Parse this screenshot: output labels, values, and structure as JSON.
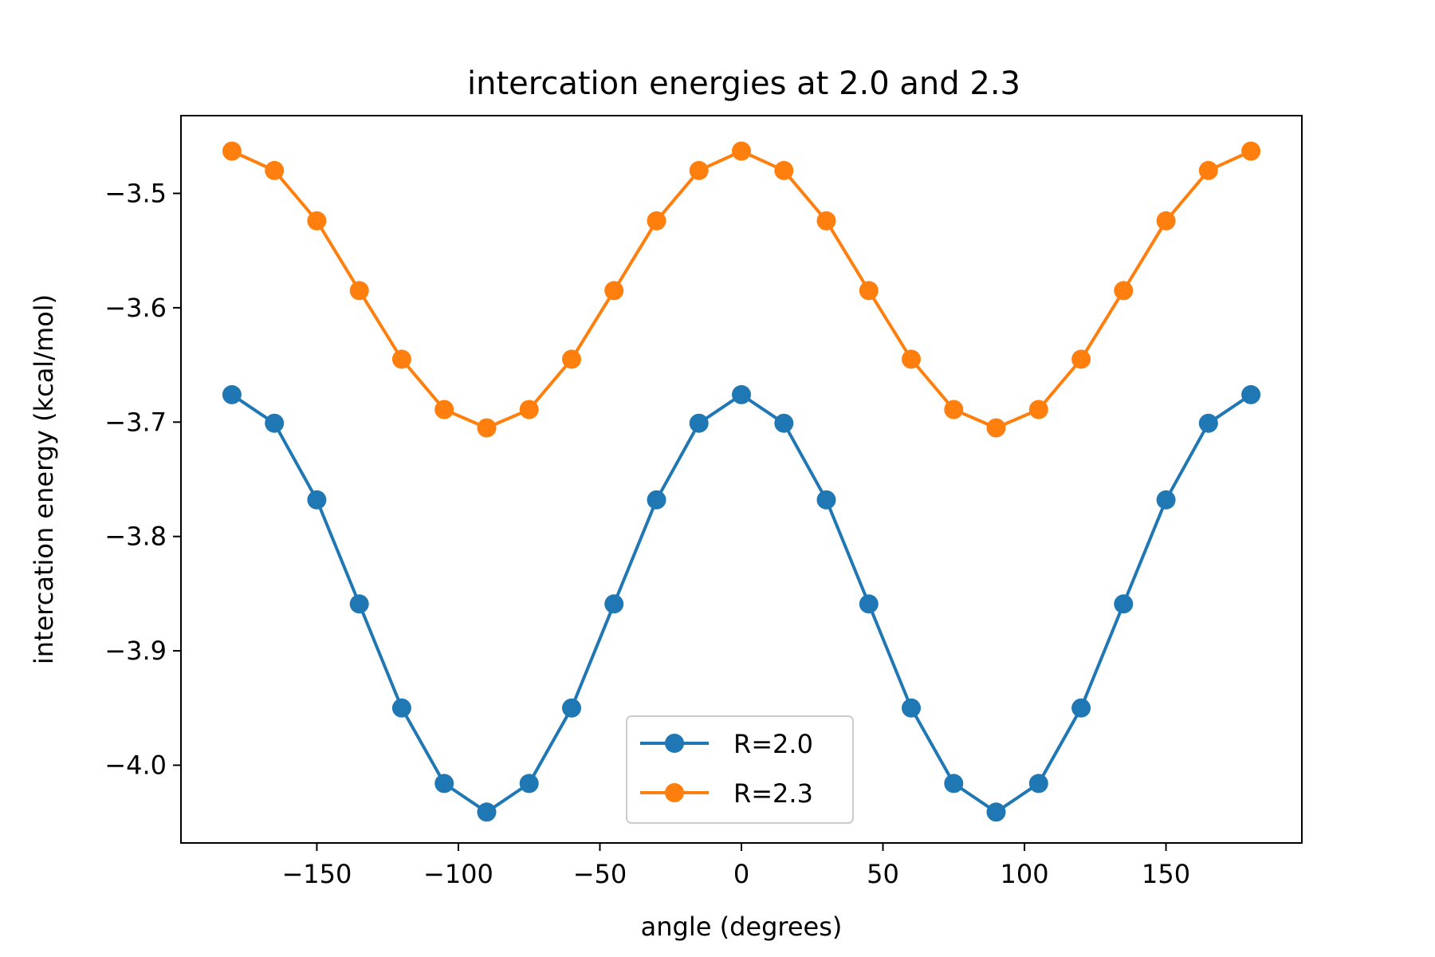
{
  "chart_data": {
    "type": "line",
    "title": "intercation energies at 2.0 and 2.3",
    "xlabel": "angle (degrees)",
    "ylabel": "intercation energy (kcal/mol)",
    "xlim": [
      -198,
      198
    ],
    "ylim": [
      -4.068,
      -3.432
    ],
    "xticks": [
      -150,
      -100,
      -50,
      0,
      50,
      100,
      150
    ],
    "xtick_labels": [
      "−150",
      "−100",
      "−50",
      "0",
      "50",
      "100",
      "150"
    ],
    "yticks": [
      -4.0,
      -3.9,
      -3.8,
      -3.7,
      -3.6,
      -3.5
    ],
    "ytick_labels": [
      "−4.0",
      "−3.9",
      "−3.8",
      "−3.7",
      "−3.6",
      "−3.5"
    ],
    "grid": false,
    "legend_position": "lower center",
    "x": [
      -180,
      -165,
      -150,
      -135,
      -120,
      -105,
      -90,
      -75,
      -60,
      -45,
      -30,
      -15,
      0,
      15,
      30,
      45,
      60,
      75,
      90,
      105,
      120,
      135,
      150,
      165,
      180
    ],
    "series": [
      {
        "name": "R=2.0",
        "color": "#1f77b4",
        "values": [
          -3.676,
          -3.701,
          -3.768,
          -3.859,
          -3.95,
          -4.016,
          -4.041,
          -4.016,
          -3.95,
          -3.859,
          -3.768,
          -3.701,
          -3.676,
          -3.701,
          -3.768,
          -3.859,
          -3.95,
          -4.016,
          -4.041,
          -4.016,
          -3.95,
          -3.859,
          -3.768,
          -3.701,
          -3.676
        ]
      },
      {
        "name": "R=2.3",
        "color": "#ff7f0e",
        "values": [
          -3.463,
          -3.48,
          -3.524,
          -3.585,
          -3.645,
          -3.689,
          -3.705,
          -3.689,
          -3.645,
          -3.585,
          -3.524,
          -3.48,
          -3.463,
          -3.48,
          -3.524,
          -3.585,
          -3.645,
          -3.689,
          -3.705,
          -3.689,
          -3.645,
          -3.585,
          -3.524,
          -3.48,
          -3.463
        ]
      }
    ]
  }
}
